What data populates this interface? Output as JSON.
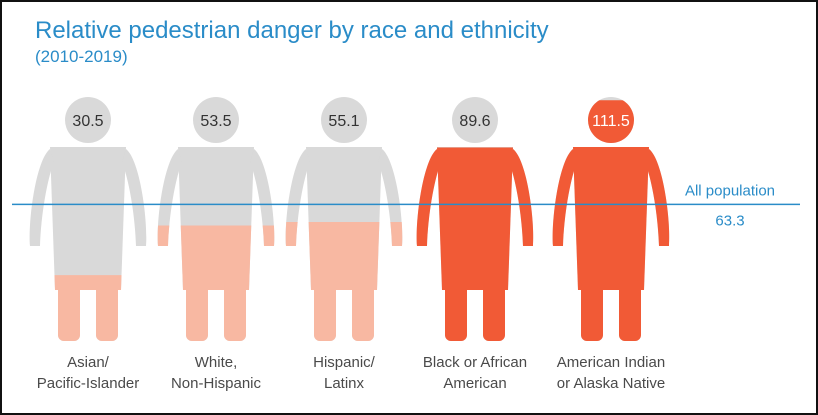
{
  "chart_data": {
    "type": "bar",
    "title": "Relative pedestrian danger by race and ethnicity",
    "subtitle": "(2010-2019)",
    "categories": [
      [
        "Asian/",
        "Pacific-Islander"
      ],
      [
        "White,",
        "Non-Hispanic"
      ],
      [
        "Hispanic/",
        "Latinx"
      ],
      [
        "Black or African",
        "American"
      ],
      [
        "American Indian",
        "or Alaska Native"
      ]
    ],
    "values": [
      30.5,
      53.5,
      55.1,
      89.6,
      111.5
    ],
    "value_labels": [
      "30.5",
      "53.5",
      "55.1",
      "89.6",
      "111.5"
    ],
    "ylim": [
      0,
      113
    ],
    "reference_line": {
      "label": "All population",
      "value": 63.3,
      "value_label": "63.3"
    },
    "colors": {
      "title": "#2a8cc8",
      "empty": "#d9d9d9",
      "below_average": "#f8b8a2",
      "above_average": "#f15a36",
      "reference_line": "#2a8cc8",
      "label_text": "#4a4a4a"
    }
  }
}
